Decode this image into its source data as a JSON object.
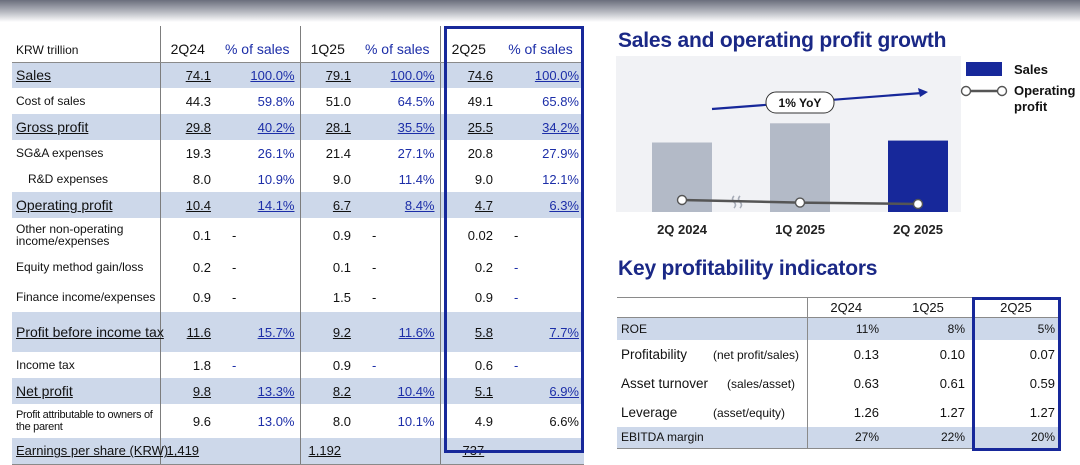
{
  "income_statement": {
    "unit_label": "KRW trillion",
    "columns": [
      "2Q24",
      "% of sales",
      "1Q25",
      "% of sales",
      "2Q25",
      "% of sales"
    ],
    "rows": [
      {
        "label": "Sales",
        "v": [
          "74.1",
          "100.0%",
          "79.1",
          "100.0%",
          "74.6",
          "100.0%"
        ]
      },
      {
        "label": "Cost of sales",
        "v": [
          "44.3",
          "59.8%",
          "51.0",
          "64.5%",
          "49.1",
          "65.8%"
        ]
      },
      {
        "label": "Gross profit",
        "v": [
          "29.8",
          "40.2%",
          "28.1",
          "35.5%",
          "25.5",
          "34.2%"
        ]
      },
      {
        "label": "SG&A expenses",
        "v": [
          "19.3",
          "26.1%",
          "21.4",
          "27.1%",
          "20.8",
          "27.9%"
        ]
      },
      {
        "label": "R&D expenses",
        "v": [
          "8.0",
          "10.9%",
          "9.0",
          "11.4%",
          "9.0",
          "12.1%"
        ]
      },
      {
        "label": "Operating profit",
        "v": [
          "10.4",
          "14.1%",
          "6.7",
          "8.4%",
          "4.7",
          "6.3%"
        ]
      },
      {
        "label": "Other non-operating income/expenses",
        "v": [
          "0.1",
          "-",
          "0.9",
          "-",
          "0.02",
          "-"
        ]
      },
      {
        "label": "Equity method gain/loss",
        "v": [
          "0.2",
          "-",
          "0.1",
          "-",
          "0.2",
          "-"
        ]
      },
      {
        "label": "Finance income/expenses",
        "v": [
          "0.9",
          "-",
          "1.5",
          "-",
          "0.9",
          "-"
        ]
      },
      {
        "label": "Profit before income tax",
        "v": [
          "11.6",
          "15.7%",
          "9.2",
          "11.6%",
          "5.8",
          "7.7%"
        ]
      },
      {
        "label": "Income tax",
        "v": [
          "1.8",
          "-",
          "0.9",
          "-",
          "0.6",
          "-"
        ]
      },
      {
        "label": "Net profit",
        "v": [
          "9.8",
          "13.3%",
          "8.2",
          "10.4%",
          "5.1",
          "6.9%"
        ]
      },
      {
        "label": "Profit attributable to owners of the parent",
        "v": [
          "9.6",
          "13.0%",
          "8.0",
          "10.1%",
          "4.9",
          "6.6%"
        ]
      },
      {
        "label": "Earnings per share (KRW)",
        "v": [
          "1,419",
          "",
          "1,192",
          "",
          "737",
          ""
        ]
      }
    ]
  },
  "growth_section": {
    "title": "Sales and operating profit growth"
  },
  "chart_data": {
    "type": "bar",
    "categories": [
      "2Q 2024",
      "1Q 2025",
      "2Q 2025"
    ],
    "series": [
      {
        "name": "Sales",
        "values": [
          74.1,
          79.1,
          74.6
        ]
      },
      {
        "name": "Operating profit",
        "values": [
          10.4,
          6.7,
          4.7
        ]
      }
    ],
    "legend": [
      "Sales",
      "Operating profit"
    ],
    "legend_position": "top-right",
    "annotation": "1% YoY",
    "colors": {
      "past_bars": "#b3bac7",
      "current_bar": "#17289a",
      "line": "#555555",
      "arrow": "#17289a"
    },
    "grid": false
  },
  "kpi_section": {
    "title": "Key profitability indicators",
    "columns": [
      "",
      "2Q24",
      "1Q25",
      "2Q25"
    ],
    "rows": [
      {
        "label": "ROE",
        "sub": "",
        "v": [
          "11%",
          "8%",
          "5%"
        ]
      },
      {
        "label": "Profitability",
        "sub": "(net profit/sales)",
        "v": [
          "0.13",
          "0.10",
          "0.07"
        ]
      },
      {
        "label": "Asset turnover",
        "sub": "(sales/asset)",
        "v": [
          "0.63",
          "0.61",
          "0.59"
        ]
      },
      {
        "label": "Leverage",
        "sub": "(asset/equity)",
        "v": [
          "1.26",
          "1.27",
          "1.27"
        ]
      },
      {
        "label": "EBITDA margin",
        "sub": "",
        "v": [
          "27%",
          "22%",
          "20%"
        ]
      }
    ]
  },
  "colors": {
    "accent": "#17289a",
    "title": "#1a2886",
    "band": "#cdd8ea",
    "percent_text": "#1c2ea8"
  }
}
